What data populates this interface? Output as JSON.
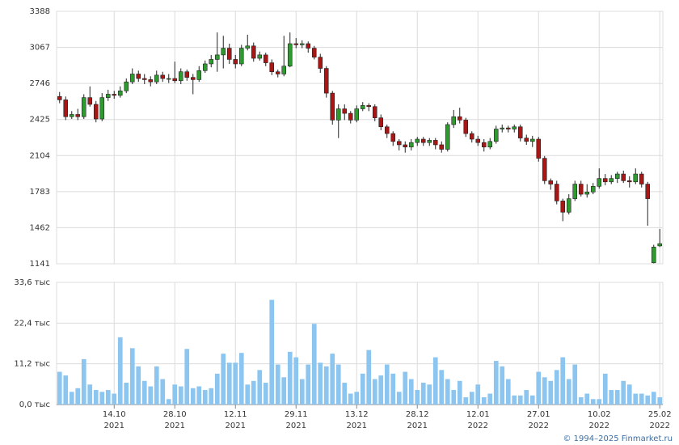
{
  "chart_data": {
    "type": "candlestick",
    "categories": [
      null,
      null,
      null,
      null,
      null,
      null,
      null,
      null,
      null,
      "14.10",
      null,
      null,
      null,
      null,
      null,
      null,
      null,
      null,
      null,
      "28.10",
      null,
      null,
      null,
      null,
      null,
      null,
      null,
      null,
      null,
      "12.11",
      null,
      null,
      null,
      null,
      null,
      null,
      null,
      null,
      null,
      "29.11",
      null,
      null,
      null,
      null,
      null,
      null,
      null,
      null,
      null,
      "13.12",
      null,
      null,
      null,
      null,
      null,
      null,
      null,
      null,
      null,
      "28.12",
      null,
      null,
      null,
      null,
      null,
      null,
      null,
      null,
      null,
      "12.01",
      null,
      null,
      null,
      null,
      null,
      null,
      null,
      null,
      null,
      "27.01",
      null,
      null,
      null,
      null,
      null,
      null,
      null,
      null,
      null,
      "10.02",
      null,
      null,
      null,
      null,
      null,
      null,
      null,
      null,
      null,
      "25.02"
    ],
    "category_years": [
      null,
      null,
      null,
      null,
      null,
      null,
      null,
      null,
      null,
      "2021",
      null,
      null,
      null,
      null,
      null,
      null,
      null,
      null,
      null,
      "2021",
      null,
      null,
      null,
      null,
      null,
      null,
      null,
      null,
      null,
      "2021",
      null,
      null,
      null,
      null,
      null,
      null,
      null,
      null,
      null,
      "2021",
      null,
      null,
      null,
      null,
      null,
      null,
      null,
      null,
      null,
      "2021",
      null,
      null,
      null,
      null,
      null,
      null,
      null,
      null,
      null,
      "2021",
      null,
      null,
      null,
      null,
      null,
      null,
      null,
      null,
      null,
      "2022",
      null,
      null,
      null,
      null,
      null,
      null,
      null,
      null,
      null,
      "2022",
      null,
      null,
      null,
      null,
      null,
      null,
      null,
      null,
      null,
      "2022",
      null,
      null,
      null,
      null,
      null,
      null,
      null,
      null,
      null,
      "2022"
    ],
    "open": [
      2630,
      2600,
      2450,
      2470,
      2450,
      2620,
      2560,
      2430,
      2620,
      2650,
      2640,
      2680,
      2760,
      2830,
      2790,
      2780,
      2760,
      2820,
      2790,
      2790,
      2770,
      2850,
      2800,
      2780,
      2860,
      2920,
      2960,
      3000,
      3060,
      2960,
      2920,
      3060,
      3080,
      2970,
      3000,
      2930,
      2850,
      2830,
      2900,
      3100,
      3090,
      3100,
      3060,
      2980,
      2880,
      2660,
      2420,
      2520,
      2480,
      2420,
      2520,
      2550,
      2540,
      2440,
      2360,
      2300,
      2230,
      2200,
      2180,
      2220,
      2250,
      2220,
      2240,
      2200,
      2160,
      2380,
      2450,
      2420,
      2300,
      2250,
      2220,
      2180,
      2230,
      2340,
      2350,
      2340,
      2360,
      2260,
      2230,
      2250,
      2080,
      1880,
      1850,
      1700,
      1600,
      1720,
      1850,
      1760,
      1780,
      1830,
      1900,
      1870,
      1900,
      1940,
      1880,
      1870,
      1940,
      1850,
      1150,
      1300
    ],
    "high": [
      2670,
      2630,
      2500,
      2520,
      2650,
      2720,
      2590,
      2660,
      2690,
      2680,
      2720,
      2790,
      2880,
      2860,
      2830,
      2810,
      2860,
      2850,
      2830,
      2940,
      2880,
      2870,
      2830,
      2900,
      2950,
      3000,
      3200,
      3170,
      3100,
      3000,
      3090,
      3180,
      3110,
      3030,
      3020,
      2960,
      2870,
      3170,
      3200,
      3150,
      3130,
      3120,
      3080,
      3010,
      2900,
      2680,
      2560,
      2560,
      2500,
      2550,
      2580,
      2570,
      2560,
      2470,
      2380,
      2320,
      2250,
      2230,
      2250,
      2270,
      2270,
      2260,
      2260,
      2230,
      2400,
      2510,
      2530,
      2440,
      2320,
      2280,
      2250,
      2260,
      2370,
      2380,
      2370,
      2380,
      2380,
      2290,
      2280,
      2270,
      2100,
      1900,
      1880,
      1720,
      1760,
      1880,
      1880,
      1850,
      1860,
      1990,
      1940,
      1930,
      1960,
      1970,
      1920,
      1990,
      1960,
      1870,
      1310,
      1450
    ],
    "low": [
      2570,
      2420,
      2430,
      2420,
      2430,
      2540,
      2400,
      2410,
      2590,
      2610,
      2620,
      2660,
      2740,
      2760,
      2740,
      2720,
      2740,
      2760,
      2750,
      2750,
      2740,
      2770,
      2650,
      2760,
      2840,
      2890,
      2850,
      2880,
      2920,
      2880,
      2900,
      3040,
      2940,
      2950,
      2900,
      2820,
      2800,
      2810,
      2890,
      3060,
      3060,
      3020,
      2960,
      2840,
      2620,
      2380,
      2260,
      2420,
      2390,
      2400,
      2500,
      2500,
      2410,
      2330,
      2260,
      2190,
      2150,
      2130,
      2150,
      2190,
      2190,
      2190,
      2160,
      2130,
      2140,
      2350,
      2390,
      2270,
      2220,
      2190,
      2140,
      2160,
      2210,
      2310,
      2310,
      2310,
      2230,
      2200,
      2180,
      2050,
      1850,
      1800,
      1670,
      1520,
      1580,
      1700,
      1740,
      1730,
      1760,
      1810,
      1840,
      1850,
      1860,
      1860,
      1820,
      1850,
      1820,
      1480,
      1145,
      1290
    ],
    "close": [
      2600,
      2450,
      2470,
      2450,
      2620,
      2560,
      2430,
      2620,
      2650,
      2640,
      2680,
      2760,
      2830,
      2790,
      2780,
      2760,
      2820,
      2790,
      2790,
      2770,
      2850,
      2800,
      2780,
      2860,
      2920,
      2960,
      3000,
      3060,
      2960,
      2920,
      3060,
      3080,
      2970,
      3000,
      2930,
      2850,
      2830,
      2900,
      3100,
      3090,
      3100,
      3060,
      2980,
      2880,
      2660,
      2420,
      2520,
      2480,
      2420,
      2520,
      2550,
      2540,
      2440,
      2360,
      2300,
      2230,
      2200,
      2180,
      2220,
      2250,
      2220,
      2240,
      2200,
      2160,
      2380,
      2450,
      2420,
      2300,
      2250,
      2220,
      2180,
      2230,
      2340,
      2350,
      2340,
      2360,
      2260,
      2230,
      2250,
      2080,
      1880,
      1850,
      1700,
      1600,
      1720,
      1850,
      1760,
      1780,
      1830,
      1900,
      1870,
      1900,
      1940,
      1880,
      1870,
      1940,
      1850,
      1720,
      1290,
      1320
    ],
    "volume": [
      9.0,
      8.0,
      3.5,
      4.5,
      12.5,
      5.5,
      4.0,
      3.5,
      4.0,
      3.0,
      18.5,
      6.0,
      15.5,
      10.5,
      6.5,
      5.0,
      10.5,
      7.0,
      1.5,
      5.5,
      5.0,
      15.3,
      4.5,
      5.0,
      4.0,
      4.5,
      8.5,
      14.0,
      11.5,
      11.5,
      14.2,
      5.5,
      6.5,
      9.5,
      6.0,
      28.8,
      11.0,
      7.5,
      14.5,
      13.0,
      7.0,
      11.0,
      22.2,
      11.5,
      10.5,
      14.0,
      11.0,
      6.0,
      3.0,
      3.5,
      8.5,
      15.0,
      7.0,
      8.0,
      11.0,
      8.5,
      3.5,
      9.0,
      7.0,
      4.0,
      6.0,
      5.5,
      13.0,
      9.5,
      7.0,
      4.0,
      6.5,
      2.0,
      3.5,
      5.5,
      2.0,
      3.0,
      12.0,
      10.5,
      7.0,
      2.5,
      2.5,
      4.0,
      2.5,
      9.0,
      7.5,
      6.5,
      9.5,
      13.0,
      7.0,
      11.0,
      2.0,
      3.0,
      1.5,
      1.5,
      8.5,
      4.0,
      4.0,
      6.5,
      5.5,
      3.0,
      3.0,
      2.5,
      3.5,
      2.0
    ],
    "up_color": "#2e9b2e",
    "down_color": "#a81616",
    "volume_color": "#8cc6f0",
    "ylim": [
      1141,
      3388
    ],
    "yticks": [
      1141,
      1462,
      1783,
      2104,
      2425,
      2746,
      3067,
      3388
    ],
    "y2lim": [
      0,
      33.6
    ],
    "y2ticks": [
      {
        "value": 0,
        "label": "0,0 тыс"
      },
      {
        "value": 11.2,
        "label": "11,2 тыс"
      },
      {
        "value": 22.4,
        "label": "22,4 тыс"
      },
      {
        "value": 33.6,
        "label": "33,6 тыс"
      }
    ],
    "grid": true,
    "footer": "© 1994–2025 Finmarket.ru"
  }
}
